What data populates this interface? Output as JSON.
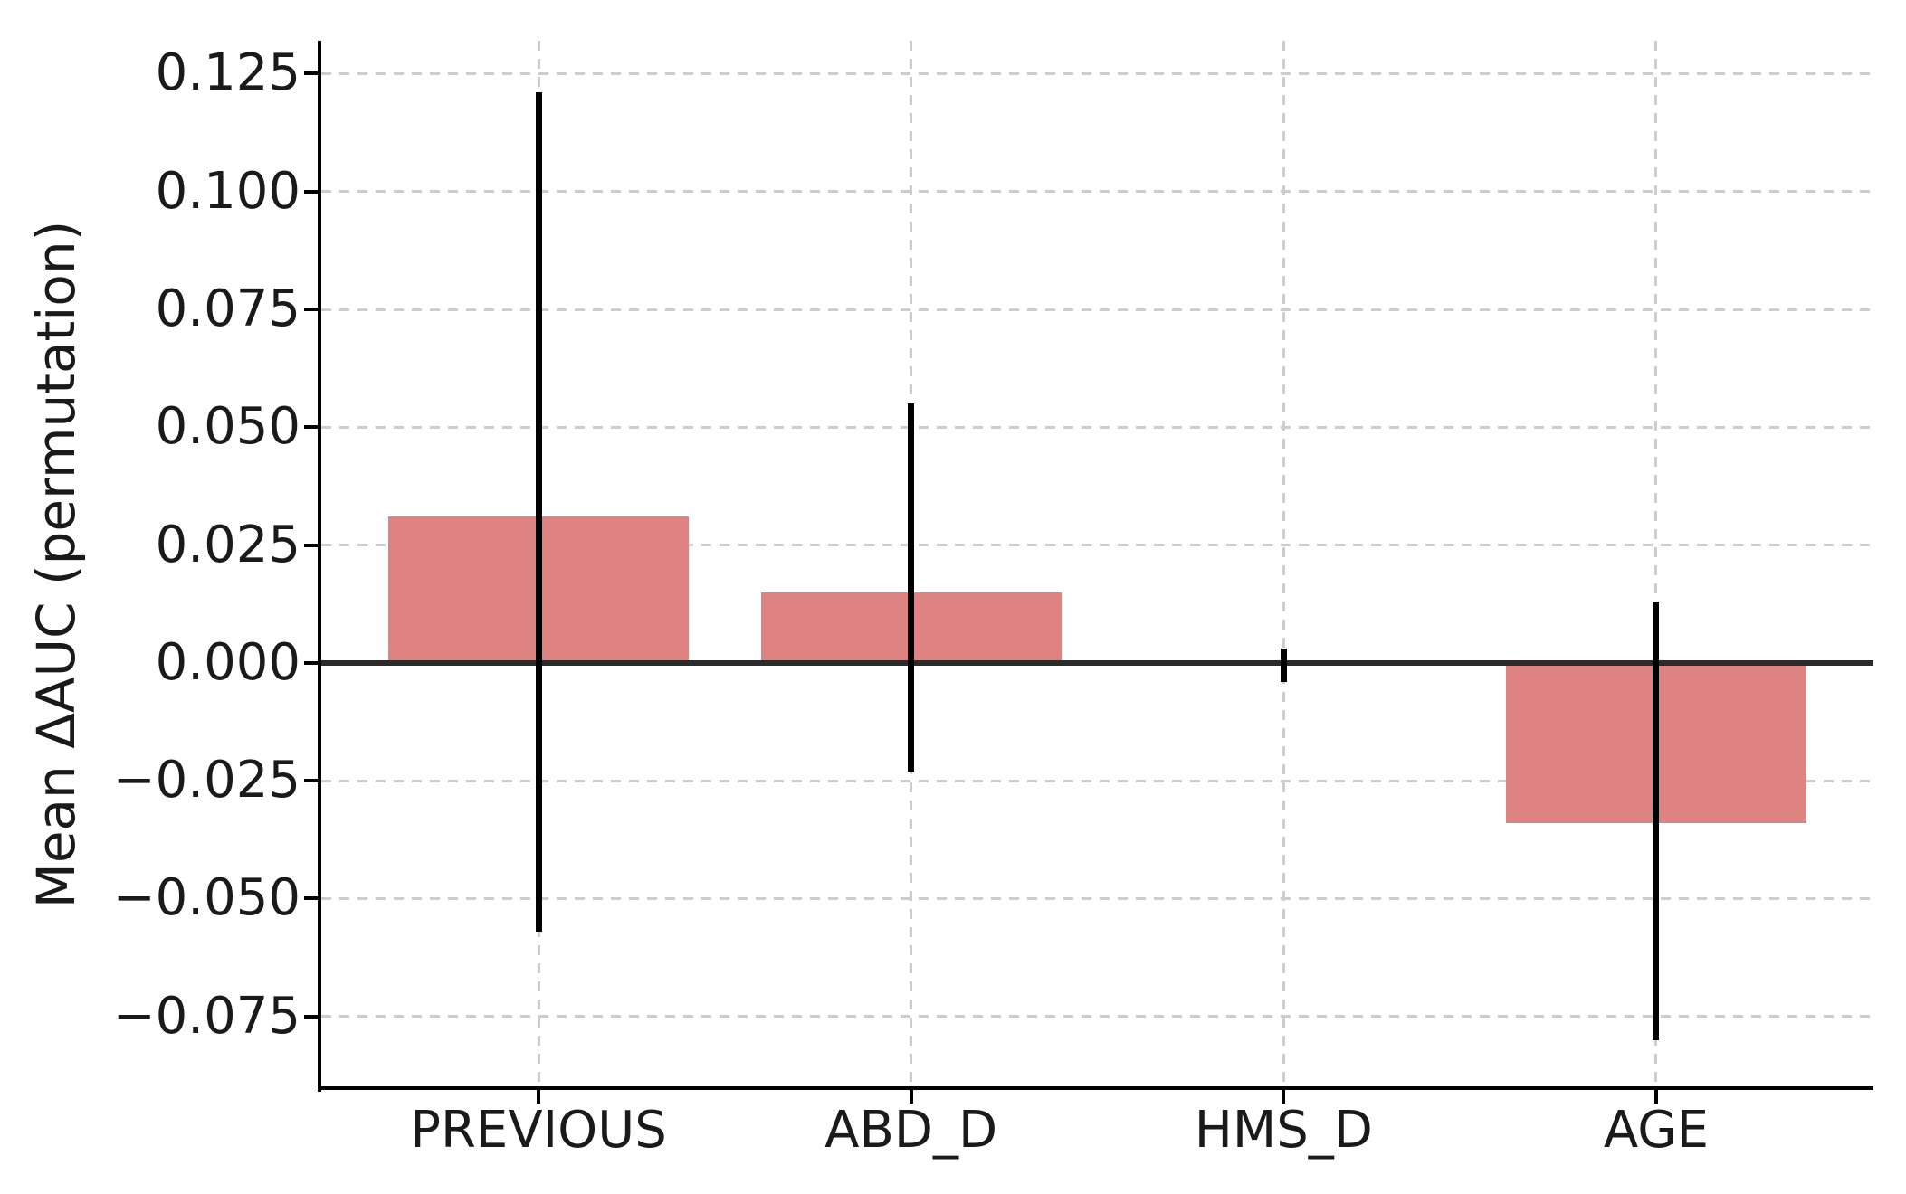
{
  "figure": {
    "background": "#ffffff",
    "title": ""
  },
  "chart_data": {
    "type": "bar",
    "title": "",
    "xlabel": "",
    "ylabel": "Mean ΔAUC (permutation)",
    "categories": [
      "PREVIOUS",
      "ABD_D",
      "HMS_D",
      "AGE"
    ],
    "values": [
      0.031,
      0.015,
      0.0,
      -0.034
    ],
    "error_low": [
      -0.057,
      -0.023,
      -0.004,
      -0.08
    ],
    "error_high": [
      0.121,
      0.055,
      0.003,
      0.013
    ],
    "yticks": [
      0.125,
      0.1,
      0.075,
      0.05,
      0.025,
      0.0,
      -0.025,
      -0.05,
      -0.075
    ],
    "ytick_labels": [
      "0.125",
      "0.100",
      "0.075",
      "0.050",
      "0.025",
      "0.000",
      "−0.025",
      "−0.050",
      "−0.075"
    ],
    "ylim": [
      -0.0902,
      0.132
    ],
    "grid": "dashed light-gray horizontal lines at y ticks and vertical lines at category centers",
    "legend_position": "none",
    "colors": {
      "bar_fill": "#de8282",
      "error_bar": "#000000",
      "zero_line": "#2b2b2b",
      "grid_line": "#cdcdcd",
      "spine": "#000000",
      "text": "#1a1a1a"
    }
  }
}
